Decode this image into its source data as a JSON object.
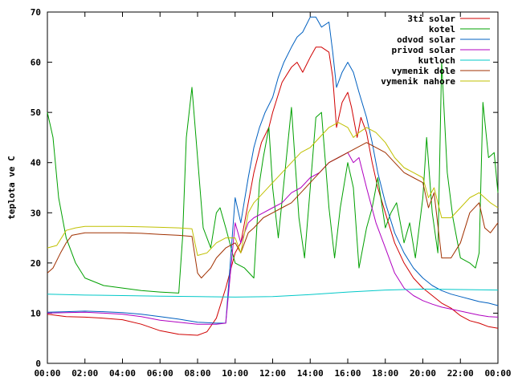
{
  "chart_data": {
    "type": "line",
    "title": "",
    "xlabel": "",
    "ylabel": "teplota ve C",
    "xlim": [
      0,
      24
    ],
    "ylim": [
      0,
      70
    ],
    "grid": false,
    "legend_position": "top-right",
    "xticks": [
      "00:00",
      "02:00",
      "04:00",
      "06:00",
      "08:00",
      "10:00",
      "12:00",
      "14:00",
      "16:00",
      "18:00",
      "20:00",
      "22:00",
      "00:00"
    ],
    "yticks": [
      "0",
      "10",
      "20",
      "30",
      "40",
      "50",
      "60",
      "70"
    ],
    "series": [
      {
        "name": "3ti solar",
        "color": "#d00000",
        "points": [
          [
            0,
            9.8
          ],
          [
            1,
            9.3
          ],
          [
            2,
            9.2
          ],
          [
            3,
            9.0
          ],
          [
            4,
            8.7
          ],
          [
            5,
            7.8
          ],
          [
            6,
            6.5
          ],
          [
            7,
            5.8
          ],
          [
            8,
            5.6
          ],
          [
            8.5,
            6.3
          ],
          [
            9,
            9
          ],
          [
            9.5,
            15
          ],
          [
            10,
            22
          ],
          [
            10.3,
            24
          ],
          [
            10.6,
            30
          ],
          [
            11,
            38
          ],
          [
            11.4,
            44
          ],
          [
            11.8,
            47
          ],
          [
            12,
            50
          ],
          [
            12.5,
            56
          ],
          [
            13,
            59
          ],
          [
            13.3,
            60
          ],
          [
            13.6,
            58
          ],
          [
            14,
            61
          ],
          [
            14.3,
            63
          ],
          [
            14.6,
            63
          ],
          [
            15,
            62
          ],
          [
            15.2,
            57
          ],
          [
            15.4,
            47
          ],
          [
            15.7,
            52
          ],
          [
            16,
            54
          ],
          [
            16.2,
            51
          ],
          [
            16.5,
            45
          ],
          [
            16.7,
            49
          ],
          [
            17,
            46
          ],
          [
            17.3,
            40
          ],
          [
            17.6,
            35
          ],
          [
            18,
            30
          ],
          [
            18.5,
            24
          ],
          [
            19,
            20
          ],
          [
            19.5,
            17
          ],
          [
            20,
            15
          ],
          [
            20.5,
            13.5
          ],
          [
            21,
            12
          ],
          [
            21.5,
            11
          ],
          [
            22,
            9.5
          ],
          [
            22.5,
            8.5
          ],
          [
            23,
            8
          ],
          [
            23.5,
            7.3
          ],
          [
            24,
            7
          ]
        ]
      },
      {
        "name": "kotel",
        "color": "#00a000",
        "points": [
          [
            0,
            50
          ],
          [
            0.3,
            45
          ],
          [
            0.6,
            33
          ],
          [
            1,
            25
          ],
          [
            1.5,
            20
          ],
          [
            2,
            17
          ],
          [
            3,
            15.5
          ],
          [
            4,
            15
          ],
          [
            5,
            14.5
          ],
          [
            6,
            14.2
          ],
          [
            7,
            14
          ],
          [
            7.2,
            25
          ],
          [
            7.4,
            45
          ],
          [
            7.7,
            55
          ],
          [
            8,
            41
          ],
          [
            8.3,
            27
          ],
          [
            8.7,
            23
          ],
          [
            9,
            30
          ],
          [
            9.2,
            31
          ],
          [
            9.5,
            27
          ],
          [
            10,
            20
          ],
          [
            10.5,
            19
          ],
          [
            11,
            17
          ],
          [
            11.3,
            36
          ],
          [
            11.5,
            41
          ],
          [
            11.8,
            47
          ],
          [
            12,
            35
          ],
          [
            12.3,
            25
          ],
          [
            12.6,
            36
          ],
          [
            13,
            51
          ],
          [
            13.4,
            29
          ],
          [
            13.7,
            21
          ],
          [
            14,
            35
          ],
          [
            14.3,
            49
          ],
          [
            14.6,
            50
          ],
          [
            15,
            31
          ],
          [
            15.3,
            21
          ],
          [
            15.6,
            31
          ],
          [
            16,
            40
          ],
          [
            16.3,
            35
          ],
          [
            16.6,
            19
          ],
          [
            17,
            27
          ],
          [
            17.3,
            31
          ],
          [
            17.6,
            37
          ],
          [
            18,
            27
          ],
          [
            18.3,
            30
          ],
          [
            18.6,
            32
          ],
          [
            19,
            24
          ],
          [
            19.3,
            28
          ],
          [
            19.6,
            21
          ],
          [
            20,
            33
          ],
          [
            20.2,
            45
          ],
          [
            20.5,
            30
          ],
          [
            20.8,
            22
          ],
          [
            21,
            60
          ],
          [
            21.3,
            38
          ],
          [
            21.6,
            29
          ],
          [
            22,
            21
          ],
          [
            22.5,
            20
          ],
          [
            22.8,
            19
          ],
          [
            23,
            22
          ],
          [
            23.2,
            52
          ],
          [
            23.5,
            41
          ],
          [
            23.8,
            42
          ],
          [
            24,
            34
          ]
        ]
      },
      {
        "name": "odvod solar",
        "color": "#0060c0",
        "points": [
          [
            0,
            10.2
          ],
          [
            1,
            10.3
          ],
          [
            2,
            10.4
          ],
          [
            3,
            10.3
          ],
          [
            4,
            10.1
          ],
          [
            5,
            9.8
          ],
          [
            6,
            9.3
          ],
          [
            7,
            8.8
          ],
          [
            8,
            8.2
          ],
          [
            9,
            8
          ],
          [
            9.5,
            8
          ],
          [
            10,
            33
          ],
          [
            10.3,
            28
          ],
          [
            10.7,
            37
          ],
          [
            11,
            43
          ],
          [
            11.3,
            47
          ],
          [
            11.6,
            50
          ],
          [
            12,
            53
          ],
          [
            12.3,
            57
          ],
          [
            12.6,
            60
          ],
          [
            13,
            63
          ],
          [
            13.3,
            65
          ],
          [
            13.6,
            66
          ],
          [
            14,
            69
          ],
          [
            14.3,
            69
          ],
          [
            14.6,
            67
          ],
          [
            15,
            68
          ],
          [
            15.2,
            62
          ],
          [
            15.4,
            55
          ],
          [
            15.7,
            58
          ],
          [
            16,
            60
          ],
          [
            16.3,
            58
          ],
          [
            16.6,
            54
          ],
          [
            17,
            49
          ],
          [
            17.3,
            44
          ],
          [
            17.6,
            38
          ],
          [
            18,
            32
          ],
          [
            18.5,
            26
          ],
          [
            19,
            22
          ],
          [
            19.5,
            19
          ],
          [
            20,
            17
          ],
          [
            20.5,
            15.5
          ],
          [
            21,
            14.5
          ],
          [
            21.5,
            13.8
          ],
          [
            22,
            13.3
          ],
          [
            22.5,
            12.8
          ],
          [
            23,
            12.3
          ],
          [
            23.5,
            12
          ],
          [
            24,
            11.5
          ]
        ]
      },
      {
        "name": "privod solar",
        "color": "#b000c0",
        "points": [
          [
            0,
            10
          ],
          [
            1,
            10.1
          ],
          [
            2,
            10.2
          ],
          [
            3,
            10
          ],
          [
            4,
            9.8
          ],
          [
            5,
            9.3
          ],
          [
            6,
            8.6
          ],
          [
            7,
            8.2
          ],
          [
            8,
            7.8
          ],
          [
            9,
            7.8
          ],
          [
            9.5,
            8
          ],
          [
            10,
            28
          ],
          [
            10.3,
            24
          ],
          [
            10.7,
            28
          ],
          [
            11,
            29
          ],
          [
            11.5,
            30
          ],
          [
            12,
            31
          ],
          [
            12.5,
            32
          ],
          [
            13,
            34
          ],
          [
            13.5,
            35
          ],
          [
            14,
            37
          ],
          [
            14.5,
            38
          ],
          [
            15,
            40
          ],
          [
            15.5,
            41
          ],
          [
            16,
            42
          ],
          [
            16.3,
            40
          ],
          [
            16.6,
            41
          ],
          [
            17,
            35
          ],
          [
            17.5,
            28
          ],
          [
            18,
            23
          ],
          [
            18.5,
            18
          ],
          [
            19,
            15
          ],
          [
            19.5,
            13.5
          ],
          [
            20,
            12.5
          ],
          [
            20.5,
            11.8
          ],
          [
            21,
            11.2
          ],
          [
            21.5,
            10.8
          ],
          [
            22,
            10.4
          ],
          [
            22.5,
            10
          ],
          [
            23,
            9.6
          ],
          [
            23.5,
            9.3
          ],
          [
            24,
            9.2
          ]
        ]
      },
      {
        "name": "kutloch",
        "color": "#00c8c8",
        "points": [
          [
            0,
            13.8
          ],
          [
            2,
            13.6
          ],
          [
            4,
            13.5
          ],
          [
            6,
            13.4
          ],
          [
            8,
            13.3
          ],
          [
            10,
            13.2
          ],
          [
            12,
            13.3
          ],
          [
            14,
            13.7
          ],
          [
            16,
            14.2
          ],
          [
            18,
            14.6
          ],
          [
            20,
            14.8
          ],
          [
            22,
            14.7
          ],
          [
            24,
            14.6
          ]
        ]
      },
      {
        "name": "vymenik dole",
        "color": "#a03000",
        "points": [
          [
            0,
            18
          ],
          [
            0.3,
            19
          ],
          [
            0.7,
            22
          ],
          [
            1,
            24
          ],
          [
            1.3,
            25.5
          ],
          [
            2,
            26
          ],
          [
            3,
            26
          ],
          [
            4,
            26
          ],
          [
            5,
            25.9
          ],
          [
            6,
            25.7
          ],
          [
            7,
            25.5
          ],
          [
            7.7,
            25.3
          ],
          [
            8,
            18
          ],
          [
            8.2,
            17
          ],
          [
            8.7,
            19
          ],
          [
            9,
            21
          ],
          [
            9.5,
            23
          ],
          [
            10,
            24
          ],
          [
            10.3,
            22
          ],
          [
            10.7,
            26
          ],
          [
            11,
            27
          ],
          [
            11.5,
            29
          ],
          [
            12,
            30
          ],
          [
            12.5,
            31
          ],
          [
            13,
            32
          ],
          [
            13.5,
            34
          ],
          [
            14,
            36
          ],
          [
            14.5,
            38
          ],
          [
            15,
            40
          ],
          [
            15.5,
            41
          ],
          [
            16,
            42
          ],
          [
            16.5,
            43
          ],
          [
            17,
            44
          ],
          [
            17.5,
            43
          ],
          [
            18,
            42
          ],
          [
            18.5,
            40
          ],
          [
            19,
            38
          ],
          [
            19.5,
            37
          ],
          [
            20,
            36
          ],
          [
            20.3,
            31
          ],
          [
            20.6,
            34
          ],
          [
            21,
            21
          ],
          [
            21.5,
            21
          ],
          [
            22,
            24
          ],
          [
            22.5,
            30
          ],
          [
            23,
            32
          ],
          [
            23.3,
            27
          ],
          [
            23.6,
            26
          ],
          [
            24,
            28
          ]
        ]
      },
      {
        "name": "vymenik nahore",
        "color": "#c0c000",
        "points": [
          [
            0,
            23
          ],
          [
            0.5,
            23.5
          ],
          [
            1,
            26.5
          ],
          [
            1.5,
            27
          ],
          [
            2,
            27.3
          ],
          [
            3,
            27.3
          ],
          [
            4,
            27.3
          ],
          [
            5,
            27.2
          ],
          [
            6,
            27.1
          ],
          [
            7,
            27
          ],
          [
            7.7,
            26.8
          ],
          [
            8,
            21.5
          ],
          [
            8.5,
            22
          ],
          [
            9,
            24
          ],
          [
            9.5,
            25
          ],
          [
            10,
            25
          ],
          [
            10.3,
            22
          ],
          [
            10.7,
            30
          ],
          [
            11,
            32
          ],
          [
            11.5,
            34
          ],
          [
            12,
            36
          ],
          [
            12.5,
            38
          ],
          [
            13,
            40
          ],
          [
            13.5,
            42
          ],
          [
            14,
            43
          ],
          [
            14.5,
            45
          ],
          [
            15,
            47
          ],
          [
            15.5,
            48
          ],
          [
            16,
            47
          ],
          [
            16.3,
            45
          ],
          [
            16.6,
            46
          ],
          [
            17,
            47
          ],
          [
            17.5,
            46
          ],
          [
            18,
            44
          ],
          [
            18.5,
            41
          ],
          [
            19,
            39
          ],
          [
            19.5,
            38
          ],
          [
            20,
            37
          ],
          [
            20.3,
            33
          ],
          [
            20.6,
            35
          ],
          [
            21,
            29
          ],
          [
            21.5,
            29
          ],
          [
            22,
            31
          ],
          [
            22.5,
            33
          ],
          [
            23,
            34
          ],
          [
            23.3,
            33
          ],
          [
            23.6,
            32
          ],
          [
            24,
            31
          ]
        ]
      }
    ]
  }
}
